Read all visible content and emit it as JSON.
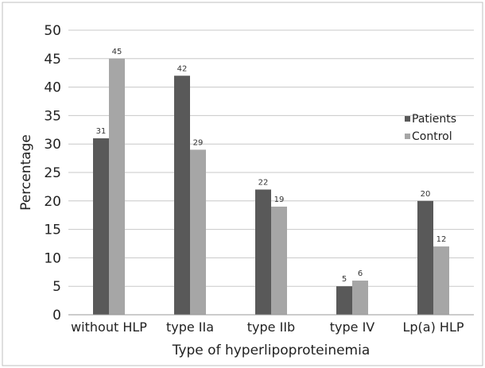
{
  "chart_data": {
    "type": "bar",
    "title": "",
    "xlabel": "Type of hyperlipoproteinemia",
    "ylabel": "Percentage",
    "categories": [
      "without HLP",
      "type IIa",
      "type IIb",
      "type IV",
      "Lp(a) HLP"
    ],
    "series": [
      {
        "name": "Patients",
        "values": [
          31,
          42,
          22,
          5,
          20
        ],
        "color": "#595959"
      },
      {
        "name": "Control",
        "values": [
          45,
          29,
          19,
          6,
          12
        ],
        "color": "#a6a6a6"
      }
    ],
    "ylim": [
      0,
      50
    ],
    "yticks": [
      0,
      5,
      10,
      15,
      20,
      25,
      30,
      35,
      40,
      45,
      50
    ],
    "grid": true,
    "legend_position": "right",
    "frame_color": "#bfbfbf"
  }
}
